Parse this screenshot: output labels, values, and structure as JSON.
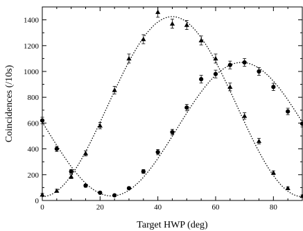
{
  "chart_data": {
    "type": "scatter",
    "xlabel": "Target HWP (deg)",
    "ylabel": "Coincidences (/10s)",
    "xlim": [
      0,
      90
    ],
    "ylim": [
      0,
      1500
    ],
    "x_ticks": [
      0,
      20,
      40,
      60,
      80
    ],
    "y_ticks": [
      0,
      200,
      400,
      600,
      800,
      1000,
      1200,
      1400
    ],
    "grid": false,
    "legend": "none",
    "series": [
      {
        "marker": "triangle",
        "color": "#000000",
        "x": [
          0,
          5,
          10,
          15,
          20,
          25,
          30,
          35,
          40,
          45,
          50,
          55,
          60,
          65,
          70,
          75,
          80,
          85,
          90
        ],
        "y": [
          45,
          75,
          185,
          365,
          580,
          855,
          1100,
          1250,
          1460,
          1370,
          1360,
          1240,
          1100,
          880,
          655,
          460,
          215,
          95,
          35
        ],
        "yerr": [
          10,
          12,
          15,
          20,
          25,
          30,
          35,
          35,
          40,
          35,
          35,
          35,
          35,
          30,
          25,
          22,
          15,
          10,
          8
        ]
      },
      {
        "marker": "circle",
        "color": "#000000",
        "x": [
          0,
          5,
          10,
          15,
          20,
          25,
          30,
          35,
          40,
          45,
          50,
          55,
          60,
          65,
          70,
          75,
          80,
          85,
          90
        ],
        "y": [
          620,
          400,
          225,
          115,
          60,
          40,
          95,
          225,
          375,
          530,
          720,
          940,
          980,
          1050,
          1070,
          1000,
          880,
          690,
          595
        ],
        "yerr": [
          25,
          20,
          15,
          12,
          10,
          8,
          10,
          15,
          20,
          22,
          25,
          30,
          30,
          30,
          30,
          30,
          28,
          25,
          25
        ]
      }
    ],
    "fits": [
      {
        "style": "dotted",
        "color": "#000000",
        "form": "offset+amp*sin^2",
        "offset": 30,
        "amp": 1395,
        "center": 45,
        "period": 90
      },
      {
        "style": "dotted",
        "color": "#000000",
        "form": "offset+amp*sin^2",
        "offset": 35,
        "amp": 1035,
        "center": 69,
        "period": 90
      }
    ]
  }
}
